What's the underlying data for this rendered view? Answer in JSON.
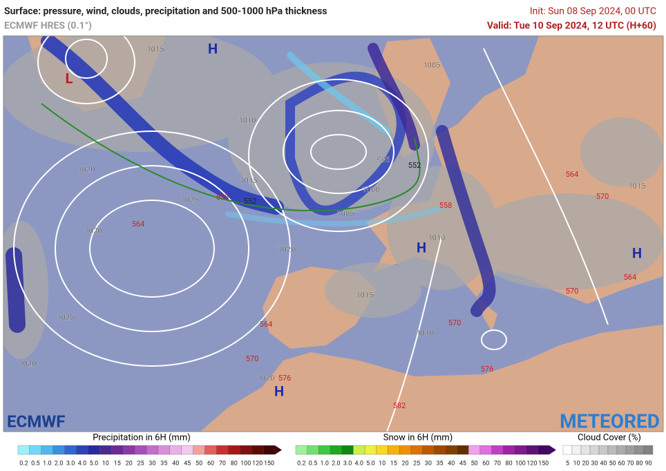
{
  "header": {
    "title": "Surface: pressure, wind, clouds, precipitation and 500-1000 hPa thickness",
    "model": "ECMWF HRES (0.1°)",
    "init": "Init: Sun 08 Sep 2024, 00 UTC",
    "valid": "Valid: Tue 10 Sep 2024, 12 UTC (H+60)"
  },
  "map": {
    "isobar_labels": [
      "1020",
      "1025",
      "1030",
      "1020",
      "1015",
      "1010",
      "1005",
      "995",
      "1000",
      "1005",
      "1010",
      "1015",
      "1010",
      "1020",
      "1025",
      "1020",
      "1015",
      "1015"
    ],
    "thickness_labels": [
      "558",
      "564",
      "552",
      "552",
      "558",
      "564",
      "570",
      "564",
      "570",
      "576",
      "570",
      "576",
      "582",
      "570",
      "564"
    ],
    "pressure_centers": [
      "H",
      "L",
      "H",
      "H",
      "H"
    ],
    "logo_left": "ECMWF",
    "logo_right": "METEORED"
  },
  "legend": {
    "precipitation": {
      "title": "Precipitation in 6H (mm)",
      "ticks": [
        "0.2",
        "0.5",
        "1.0",
        "2.0",
        "3.0",
        "4.0",
        "5.0",
        "10",
        "15",
        "20",
        "25",
        "30",
        "35",
        "40",
        "45",
        "50",
        "60",
        "70",
        "80",
        "100",
        "120",
        "150"
      ]
    },
    "snow": {
      "title": "Snow in 6H (mm)",
      "ticks": [
        "0.2",
        "0.5",
        "1.0",
        "2.0",
        "3.0",
        "4.0",
        "5.0",
        "10",
        "15",
        "20",
        "25",
        "30",
        "35",
        "40",
        "45",
        "50",
        "60",
        "70",
        "80",
        "100",
        "120",
        "150"
      ]
    },
    "cloud": {
      "title": "Cloud Cover (%)",
      "ticks": [
        "5",
        "10",
        "20",
        "30",
        "40",
        "50",
        "60",
        "70",
        "80",
        "90"
      ]
    }
  }
}
